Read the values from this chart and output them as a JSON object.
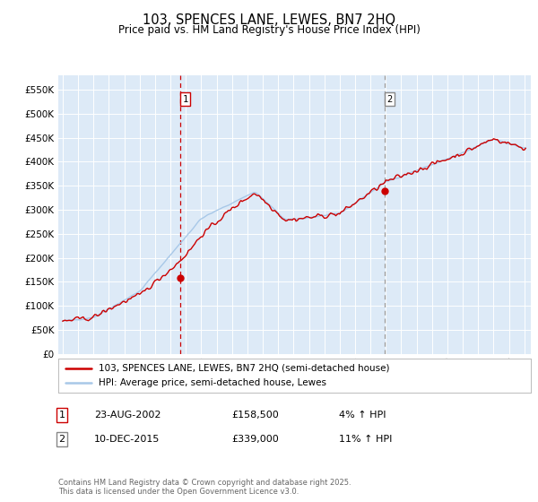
{
  "title": "103, SPENCES LANE, LEWES, BN7 2HQ",
  "subtitle": "Price paid vs. HM Land Registry's House Price Index (HPI)",
  "legend_line1": "103, SPENCES LANE, LEWES, BN7 2HQ (semi-detached house)",
  "legend_line2": "HPI: Average price, semi-detached house, Lewes",
  "annotation1_label": "1",
  "annotation1_date": "23-AUG-2002",
  "annotation1_price": "£158,500",
  "annotation1_hpi": "4% ↑ HPI",
  "annotation1_year": 2002.65,
  "annotation2_label": "2",
  "annotation2_date": "10-DEC-2015",
  "annotation2_price": "£339,000",
  "annotation2_hpi": "11% ↑ HPI",
  "annotation2_year": 2015.95,
  "footer": "Contains HM Land Registry data © Crown copyright and database right 2025.\nThis data is licensed under the Open Government Licence v3.0.",
  "hpi_color": "#a8c8e8",
  "price_color": "#cc0000",
  "background_color": "#ddeaf7",
  "ylim_min": 0,
  "ylim_max": 580000,
  "sale1_year": 2002.65,
  "sale1_value": 158500,
  "sale2_year": 2015.95,
  "sale2_value": 339000
}
